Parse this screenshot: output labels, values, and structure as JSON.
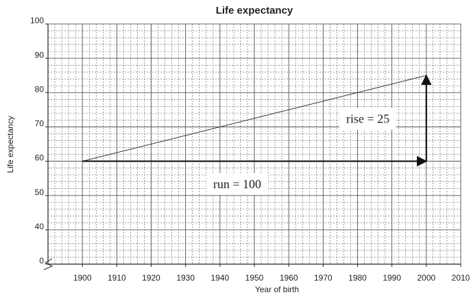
{
  "chart_data": {
    "type": "line",
    "title": "Life expectancy",
    "x_label": "Year of birth",
    "y_label": "Life expectancy",
    "x": [
      1900,
      2000
    ],
    "series": [
      {
        "color": "#333333",
        "values": [
          60,
          85
        ]
      }
    ],
    "xlim": [
      1890,
      2010
    ],
    "xticks": [
      1900,
      1910,
      1920,
      1930,
      1940,
      1950,
      1960,
      1970,
      1980,
      1990,
      2000,
      2010
    ],
    "ylim": [
      0,
      100
    ],
    "yticks": [
      0,
      40,
      50,
      60,
      70,
      80,
      90,
      100
    ],
    "y_break": [
      0,
      30
    ],
    "grid": true,
    "arrows": [
      {
        "from": [
          1900,
          60
        ],
        "to": [
          2000,
          60
        ]
      },
      {
        "from": [
          2000,
          60
        ],
        "to": [
          2000,
          85
        ]
      }
    ],
    "annotations": [
      {
        "text": "run = 100",
        "x": 1945,
        "y": 53
      },
      {
        "text": "rise = 25",
        "x": 1983,
        "y": 72
      }
    ]
  }
}
